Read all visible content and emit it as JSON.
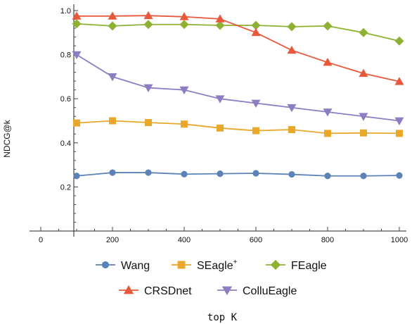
{
  "chart_data": {
    "type": "line",
    "xlabel": "top K",
    "ylabel": "NDCG@k",
    "x": [
      100,
      200,
      300,
      400,
      500,
      600,
      700,
      800,
      900,
      1000
    ],
    "xlim": [
      -50,
      1000
    ],
    "ylim": [
      0,
      1.0
    ],
    "x_ticks": [
      0,
      200,
      400,
      600,
      800,
      1000
    ],
    "y_ticks": [
      0.2,
      0.4,
      0.6,
      0.8,
      1.0
    ],
    "x_tick_labels": [
      "0",
      "200",
      "400",
      "600",
      "800",
      "1000"
    ],
    "y_tick_labels": [
      "0.2",
      "0.4",
      "0.6",
      "0.8",
      "1.0"
    ],
    "grid": false,
    "legend_position": "bottom",
    "series": [
      {
        "name": "Wang",
        "color": "#5b83b7",
        "marker": "circle",
        "values": [
          0.25,
          0.265,
          0.265,
          0.258,
          0.26,
          0.262,
          0.257,
          0.25,
          0.25,
          0.252
        ]
      },
      {
        "name": "SEagle",
        "name_sup": "+",
        "color": "#e9a72c",
        "marker": "square",
        "values": [
          0.49,
          0.5,
          0.492,
          0.485,
          0.467,
          0.455,
          0.46,
          0.443,
          0.445,
          0.443
        ]
      },
      {
        "name": "FEagle",
        "color": "#8fb131",
        "marker": "diamond",
        "values": [
          0.94,
          0.93,
          0.937,
          0.937,
          0.933,
          0.933,
          0.927,
          0.93,
          0.9,
          0.862
        ]
      },
      {
        "name": "CRSDnet",
        "color": "#e8593c",
        "marker": "triangle-up",
        "values": [
          0.975,
          0.975,
          0.977,
          0.972,
          0.962,
          0.9,
          0.82,
          0.765,
          0.715,
          0.678
        ]
      },
      {
        "name": "ColluEagle",
        "color": "#8d7ec3",
        "marker": "triangle-down",
        "values": [
          0.8,
          0.7,
          0.65,
          0.64,
          0.6,
          0.58,
          0.56,
          0.54,
          0.52,
          0.5
        ]
      }
    ]
  }
}
